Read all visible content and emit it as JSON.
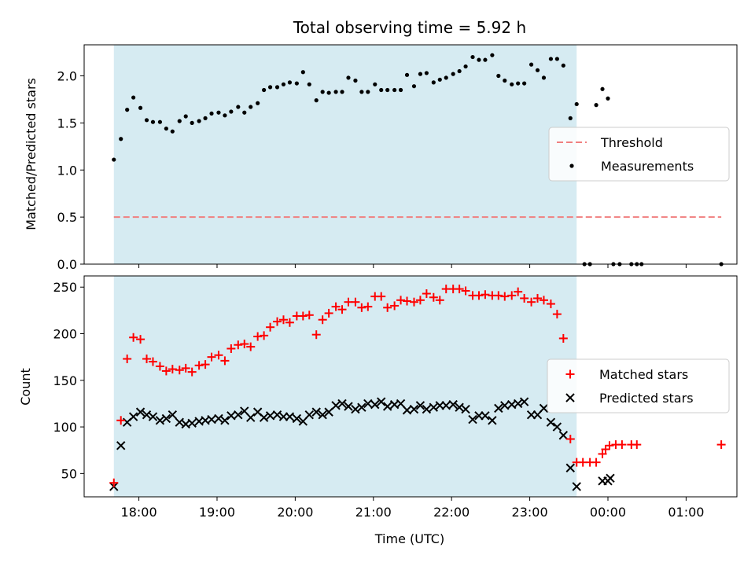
{
  "chart_data": [
    {
      "type": "scatter",
      "title": "Total observing time = 5.92 h",
      "ylabel": "Matched/Predicted stars",
      "xlabel": "",
      "ylim": [
        0,
        2.33
      ],
      "yticks": [
        "0.0",
        "0.5",
        "1.0",
        "1.5",
        "2.0"
      ],
      "yticks_values": [
        0,
        0.5,
        1.0,
        1.5,
        2.0
      ],
      "grid": false,
      "legend_placement": "center-right",
      "observing_window_hours": [
        17.68,
        23.6
      ],
      "threshold": {
        "name": "Threshold",
        "value": 0.5,
        "x_range": [
          17.68,
          25.45
        ],
        "color": "#f08080"
      },
      "series": [
        {
          "name": "Measurements",
          "color": "#000000",
          "marker": "dot",
          "x": [
            17.68,
            17.77,
            17.85,
            17.93,
            18.02,
            18.1,
            18.18,
            18.27,
            18.35,
            18.43,
            18.52,
            18.6,
            18.68,
            18.77,
            18.85,
            18.93,
            19.02,
            19.1,
            19.18,
            19.27,
            19.35,
            19.43,
            19.52,
            19.6,
            19.68,
            19.77,
            19.85,
            19.93,
            20.02,
            20.1,
            20.18,
            20.27,
            20.35,
            20.43,
            20.52,
            20.6,
            20.68,
            20.77,
            20.85,
            20.93,
            21.02,
            21.1,
            21.18,
            21.27,
            21.35,
            21.43,
            21.52,
            21.6,
            21.68,
            21.77,
            21.85,
            21.93,
            22.02,
            22.1,
            22.18,
            22.27,
            22.35,
            22.43,
            22.52,
            22.6,
            22.68,
            22.77,
            22.85,
            22.93,
            23.02,
            23.1,
            23.18,
            23.27,
            23.35,
            23.43,
            23.52,
            23.6,
            23.7,
            23.77,
            23.85,
            23.93,
            24.0,
            24.07,
            24.15,
            24.3,
            24.37,
            24.43,
            25.45
          ],
          "y": [
            1.11,
            1.33,
            1.64,
            1.77,
            1.66,
            1.53,
            1.51,
            1.51,
            1.44,
            1.41,
            1.52,
            1.57,
            1.5,
            1.52,
            1.55,
            1.6,
            1.61,
            1.58,
            1.62,
            1.67,
            1.61,
            1.67,
            1.71,
            1.85,
            1.88,
            1.88,
            1.91,
            1.93,
            1.92,
            2.04,
            1.91,
            1.74,
            1.83,
            1.82,
            1.83,
            1.83,
            1.98,
            1.95,
            1.83,
            1.83,
            1.91,
            1.85,
            1.85,
            1.85,
            1.85,
            2.01,
            1.89,
            2.02,
            2.03,
            1.93,
            1.96,
            1.98,
            2.02,
            2.05,
            2.1,
            2.2,
            2.17,
            2.17,
            2.22,
            2.0,
            1.95,
            1.91,
            1.92,
            1.92,
            2.12,
            2.06,
            1.98,
            2.18,
            2.18,
            2.11,
            1.55,
            1.7,
            0.0,
            0.0,
            1.69,
            1.86,
            1.76,
            0.0,
            0.0,
            0.0,
            0.0,
            0.0,
            0.0
          ]
        }
      ]
    },
    {
      "type": "scatter",
      "title": "",
      "ylabel": "Count",
      "xlabel": "Time (UTC)",
      "ylim": [
        25,
        262
      ],
      "yticks": [
        "50",
        "100",
        "150",
        "200",
        "250"
      ],
      "yticks_values": [
        50,
        100,
        150,
        200,
        250
      ],
      "xlim": [
        17.3,
        25.65
      ],
      "xticks": [
        "18:00",
        "19:00",
        "20:00",
        "21:00",
        "22:00",
        "23:00",
        "00:00",
        "01:00"
      ],
      "xticks_values": [
        18,
        19,
        20,
        21,
        22,
        23,
        24,
        25
      ],
      "grid": false,
      "legend_placement": "center-right",
      "observing_window_hours": [
        17.68,
        23.6
      ],
      "series": [
        {
          "name": "Matched stars",
          "color": "#ff0000",
          "marker": "plus",
          "x": [
            17.68,
            17.77,
            17.85,
            17.93,
            18.02,
            18.1,
            18.18,
            18.27,
            18.35,
            18.43,
            18.52,
            18.6,
            18.68,
            18.77,
            18.85,
            18.93,
            19.02,
            19.1,
            19.18,
            19.27,
            19.35,
            19.43,
            19.52,
            19.6,
            19.68,
            19.77,
            19.85,
            19.93,
            20.02,
            20.1,
            20.18,
            20.27,
            20.35,
            20.43,
            20.52,
            20.6,
            20.68,
            20.77,
            20.85,
            20.93,
            21.02,
            21.1,
            21.18,
            21.27,
            21.35,
            21.43,
            21.52,
            21.6,
            21.68,
            21.77,
            21.85,
            21.93,
            22.02,
            22.1,
            22.18,
            22.27,
            22.35,
            22.43,
            22.52,
            22.6,
            22.68,
            22.77,
            22.85,
            22.93,
            23.02,
            23.1,
            23.18,
            23.27,
            23.35,
            23.43,
            23.52,
            23.6,
            23.68,
            23.77,
            23.85,
            23.93,
            23.97,
            24.02,
            24.1,
            24.18,
            24.3,
            24.37,
            25.45
          ],
          "y": [
            40,
            107,
            173,
            196,
            194,
            173,
            170,
            165,
            160,
            162,
            161,
            163,
            159,
            166,
            167,
            175,
            177,
            171,
            184,
            188,
            189,
            186,
            197,
            198,
            207,
            213,
            215,
            212,
            219,
            219,
            220,
            199,
            215,
            222,
            229,
            226,
            234,
            234,
            228,
            229,
            240,
            240,
            228,
            230,
            236,
            235,
            234,
            236,
            243,
            239,
            236,
            248,
            248,
            248,
            246,
            241,
            241,
            242,
            241,
            241,
            240,
            241,
            245,
            238,
            234,
            238,
            236,
            232,
            221,
            195,
            87,
            62,
            62,
            62,
            62,
            71,
            76,
            80,
            81,
            81,
            81,
            81,
            81
          ]
        },
        {
          "name": "Predicted stars",
          "color": "#000000",
          "marker": "x",
          "x": [
            17.68,
            17.77,
            17.85,
            17.93,
            18.02,
            18.1,
            18.18,
            18.27,
            18.35,
            18.43,
            18.52,
            18.6,
            18.68,
            18.77,
            18.85,
            18.93,
            19.02,
            19.1,
            19.18,
            19.27,
            19.35,
            19.43,
            19.52,
            19.6,
            19.68,
            19.77,
            19.85,
            19.93,
            20.02,
            20.1,
            20.18,
            20.27,
            20.35,
            20.43,
            20.52,
            20.6,
            20.68,
            20.77,
            20.85,
            20.93,
            21.02,
            21.1,
            21.18,
            21.27,
            21.35,
            21.43,
            21.52,
            21.6,
            21.68,
            21.77,
            21.85,
            21.93,
            22.02,
            22.1,
            22.18,
            22.27,
            22.35,
            22.43,
            22.52,
            22.6,
            22.68,
            22.77,
            22.85,
            22.93,
            23.02,
            23.1,
            23.18,
            23.27,
            23.35,
            23.43,
            23.52,
            23.6,
            23.93,
            24.0,
            24.03
          ],
          "y": [
            36,
            80,
            105,
            111,
            116,
            113,
            111,
            107,
            109,
            113,
            105,
            103,
            104,
            106,
            107,
            108,
            109,
            107,
            112,
            113,
            117,
            110,
            116,
            110,
            112,
            113,
            111,
            111,
            109,
            106,
            113,
            116,
            113,
            116,
            123,
            125,
            122,
            119,
            121,
            125,
            124,
            127,
            122,
            124,
            125,
            118,
            119,
            123,
            119,
            121,
            123,
            123,
            124,
            121,
            119,
            108,
            112,
            112,
            107,
            120,
            123,
            124,
            125,
            127,
            113,
            113,
            120,
            105,
            100,
            91,
            56,
            36,
            42,
            42,
            45
          ]
        }
      ]
    }
  ]
}
